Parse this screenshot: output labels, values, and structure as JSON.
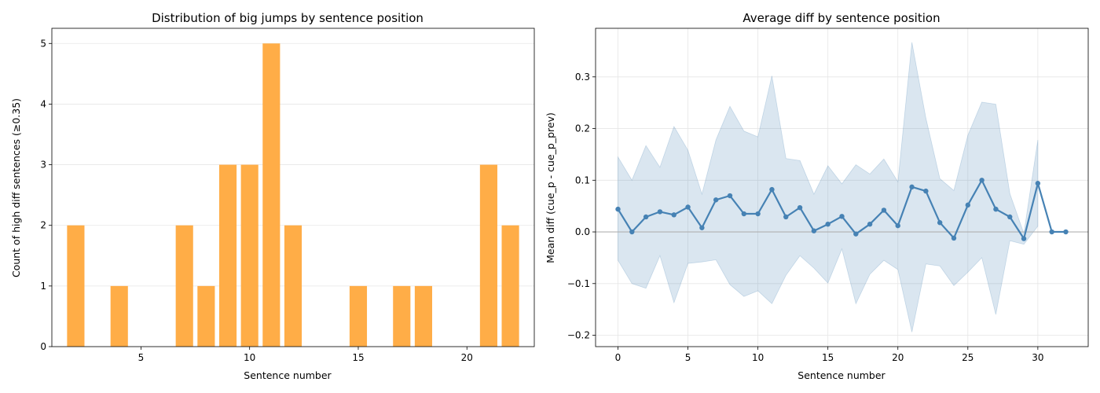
{
  "colors": {
    "bar": "#ffad47",
    "line": "#4682b4",
    "band": "#4682b4",
    "grid": "#e6e6e6",
    "zero_line": "#b0b0b0"
  },
  "chart_data": [
    {
      "type": "bar",
      "title": "Distribution of big jumps by sentence position",
      "xlabel": "Sentence number",
      "ylabel": "Count of high diff sentences (≥0.35)",
      "x": [
        2,
        4,
        7,
        8,
        9,
        10,
        11,
        12,
        15,
        17,
        18,
        21,
        22
      ],
      "values": [
        2,
        1,
        2,
        1,
        3,
        3,
        5,
        2,
        1,
        1,
        1,
        3,
        2
      ],
      "xlim": [
        0.9,
        23.1
      ],
      "ylim": [
        0,
        5.25
      ],
      "xticks": [
        5,
        10,
        15,
        20
      ],
      "yticks": [
        0,
        1,
        2,
        3,
        4,
        5
      ],
      "grid": "y-axis only"
    },
    {
      "type": "line",
      "title": "Average diff by sentence position",
      "xlabel": "Sentence number",
      "ylabel": "Mean diff (cue_p - cue_p_prev)",
      "x": [
        0,
        1,
        2,
        3,
        4,
        5,
        6,
        7,
        8,
        9,
        10,
        11,
        12,
        13,
        14,
        15,
        16,
        17,
        18,
        19,
        20,
        21,
        22,
        23,
        24,
        25,
        26,
        27,
        28,
        29,
        30,
        31,
        32
      ],
      "values": [
        0.044,
        0.0,
        0.029,
        0.039,
        0.033,
        0.048,
        0.008,
        0.062,
        0.07,
        0.035,
        0.035,
        0.082,
        0.029,
        0.047,
        0.002,
        0.015,
        0.03,
        -0.004,
        0.015,
        0.042,
        0.012,
        0.087,
        0.079,
        0.018,
        -0.012,
        0.052,
        0.1,
        0.044,
        0.029,
        -0.013,
        0.094,
        0.0,
        0.0
      ],
      "band_upper": [
        0.145,
        0.1,
        0.167,
        0.125,
        0.204,
        0.158,
        0.073,
        0.178,
        0.243,
        0.195,
        0.184,
        0.302,
        0.142,
        0.138,
        0.073,
        0.128,
        0.093,
        0.13,
        0.112,
        0.141,
        0.097,
        0.367,
        0.22,
        0.103,
        0.08,
        0.187,
        0.251,
        0.247,
        0.074,
        -0.003,
        0.178,
        null,
        null
      ],
      "band_lower": [
        -0.055,
        -0.1,
        -0.109,
        -0.046,
        -0.137,
        -0.061,
        -0.058,
        -0.054,
        -0.102,
        -0.125,
        -0.114,
        -0.139,
        -0.084,
        -0.046,
        -0.07,
        -0.099,
        -0.033,
        -0.139,
        -0.082,
        -0.055,
        -0.073,
        -0.194,
        -0.062,
        -0.066,
        -0.104,
        -0.078,
        -0.05,
        -0.16,
        -0.017,
        -0.024,
        0.011,
        null,
        null
      ],
      "xlim": [
        -1.6,
        33.6
      ],
      "ylim": [
        -0.222,
        0.394
      ],
      "xticks": [
        0,
        5,
        10,
        15,
        20,
        25,
        30
      ],
      "yticks": [
        -0.2,
        -0.1,
        0.0,
        0.1,
        0.2,
        0.3
      ],
      "ytick_labels": [
        "−0.2",
        "−0.1",
        "0.0",
        "0.1",
        "0.2",
        "0.3"
      ],
      "grid": "both axes",
      "reference_line_y": 0
    }
  ]
}
